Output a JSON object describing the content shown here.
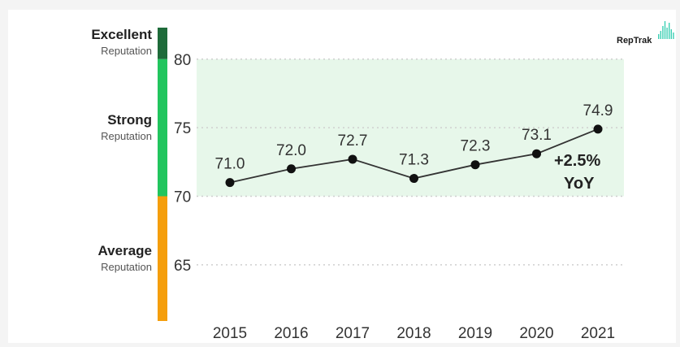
{
  "bands": [
    {
      "title": "Excellent",
      "subtitle": "Reputation",
      "color": "#1e6b3a",
      "from": 80,
      "to": 82.3
    },
    {
      "title": "Strong",
      "subtitle": "Reputation",
      "color": "#22c55e",
      "from": 70,
      "to": 80
    },
    {
      "title": "Average",
      "subtitle": "Reputation",
      "color": "#f59e0b",
      "from": 60.9,
      "to": 70
    }
  ],
  "logo": {
    "text": "RepTrak",
    "icon": "heartbeat-bars-icon",
    "color": "#3ccfb4"
  },
  "annotation": {
    "line1": "+2.5%",
    "line2": "YoY"
  },
  "colors": {
    "strong_zone_fill": "#e7f7ea",
    "line": "#333333",
    "marker": "#111111"
  },
  "chart_data": {
    "type": "line",
    "x": [
      "2015",
      "2016",
      "2017",
      "2018",
      "2019",
      "2020",
      "2021"
    ],
    "values": [
      71.0,
      72.0,
      72.7,
      71.3,
      72.3,
      73.1,
      74.9
    ],
    "data_labels": [
      "71.0",
      "72.0",
      "72.7",
      "71.3",
      "72.3",
      "73.1",
      "74.9"
    ],
    "yticks": [
      "80",
      "75",
      "70",
      "65"
    ],
    "ytick_values": [
      80,
      75,
      70,
      65
    ],
    "ylim": [
      60.9,
      82.3
    ],
    "grid": "dotted horizontal",
    "shaded_range": [
      70,
      80
    ]
  }
}
